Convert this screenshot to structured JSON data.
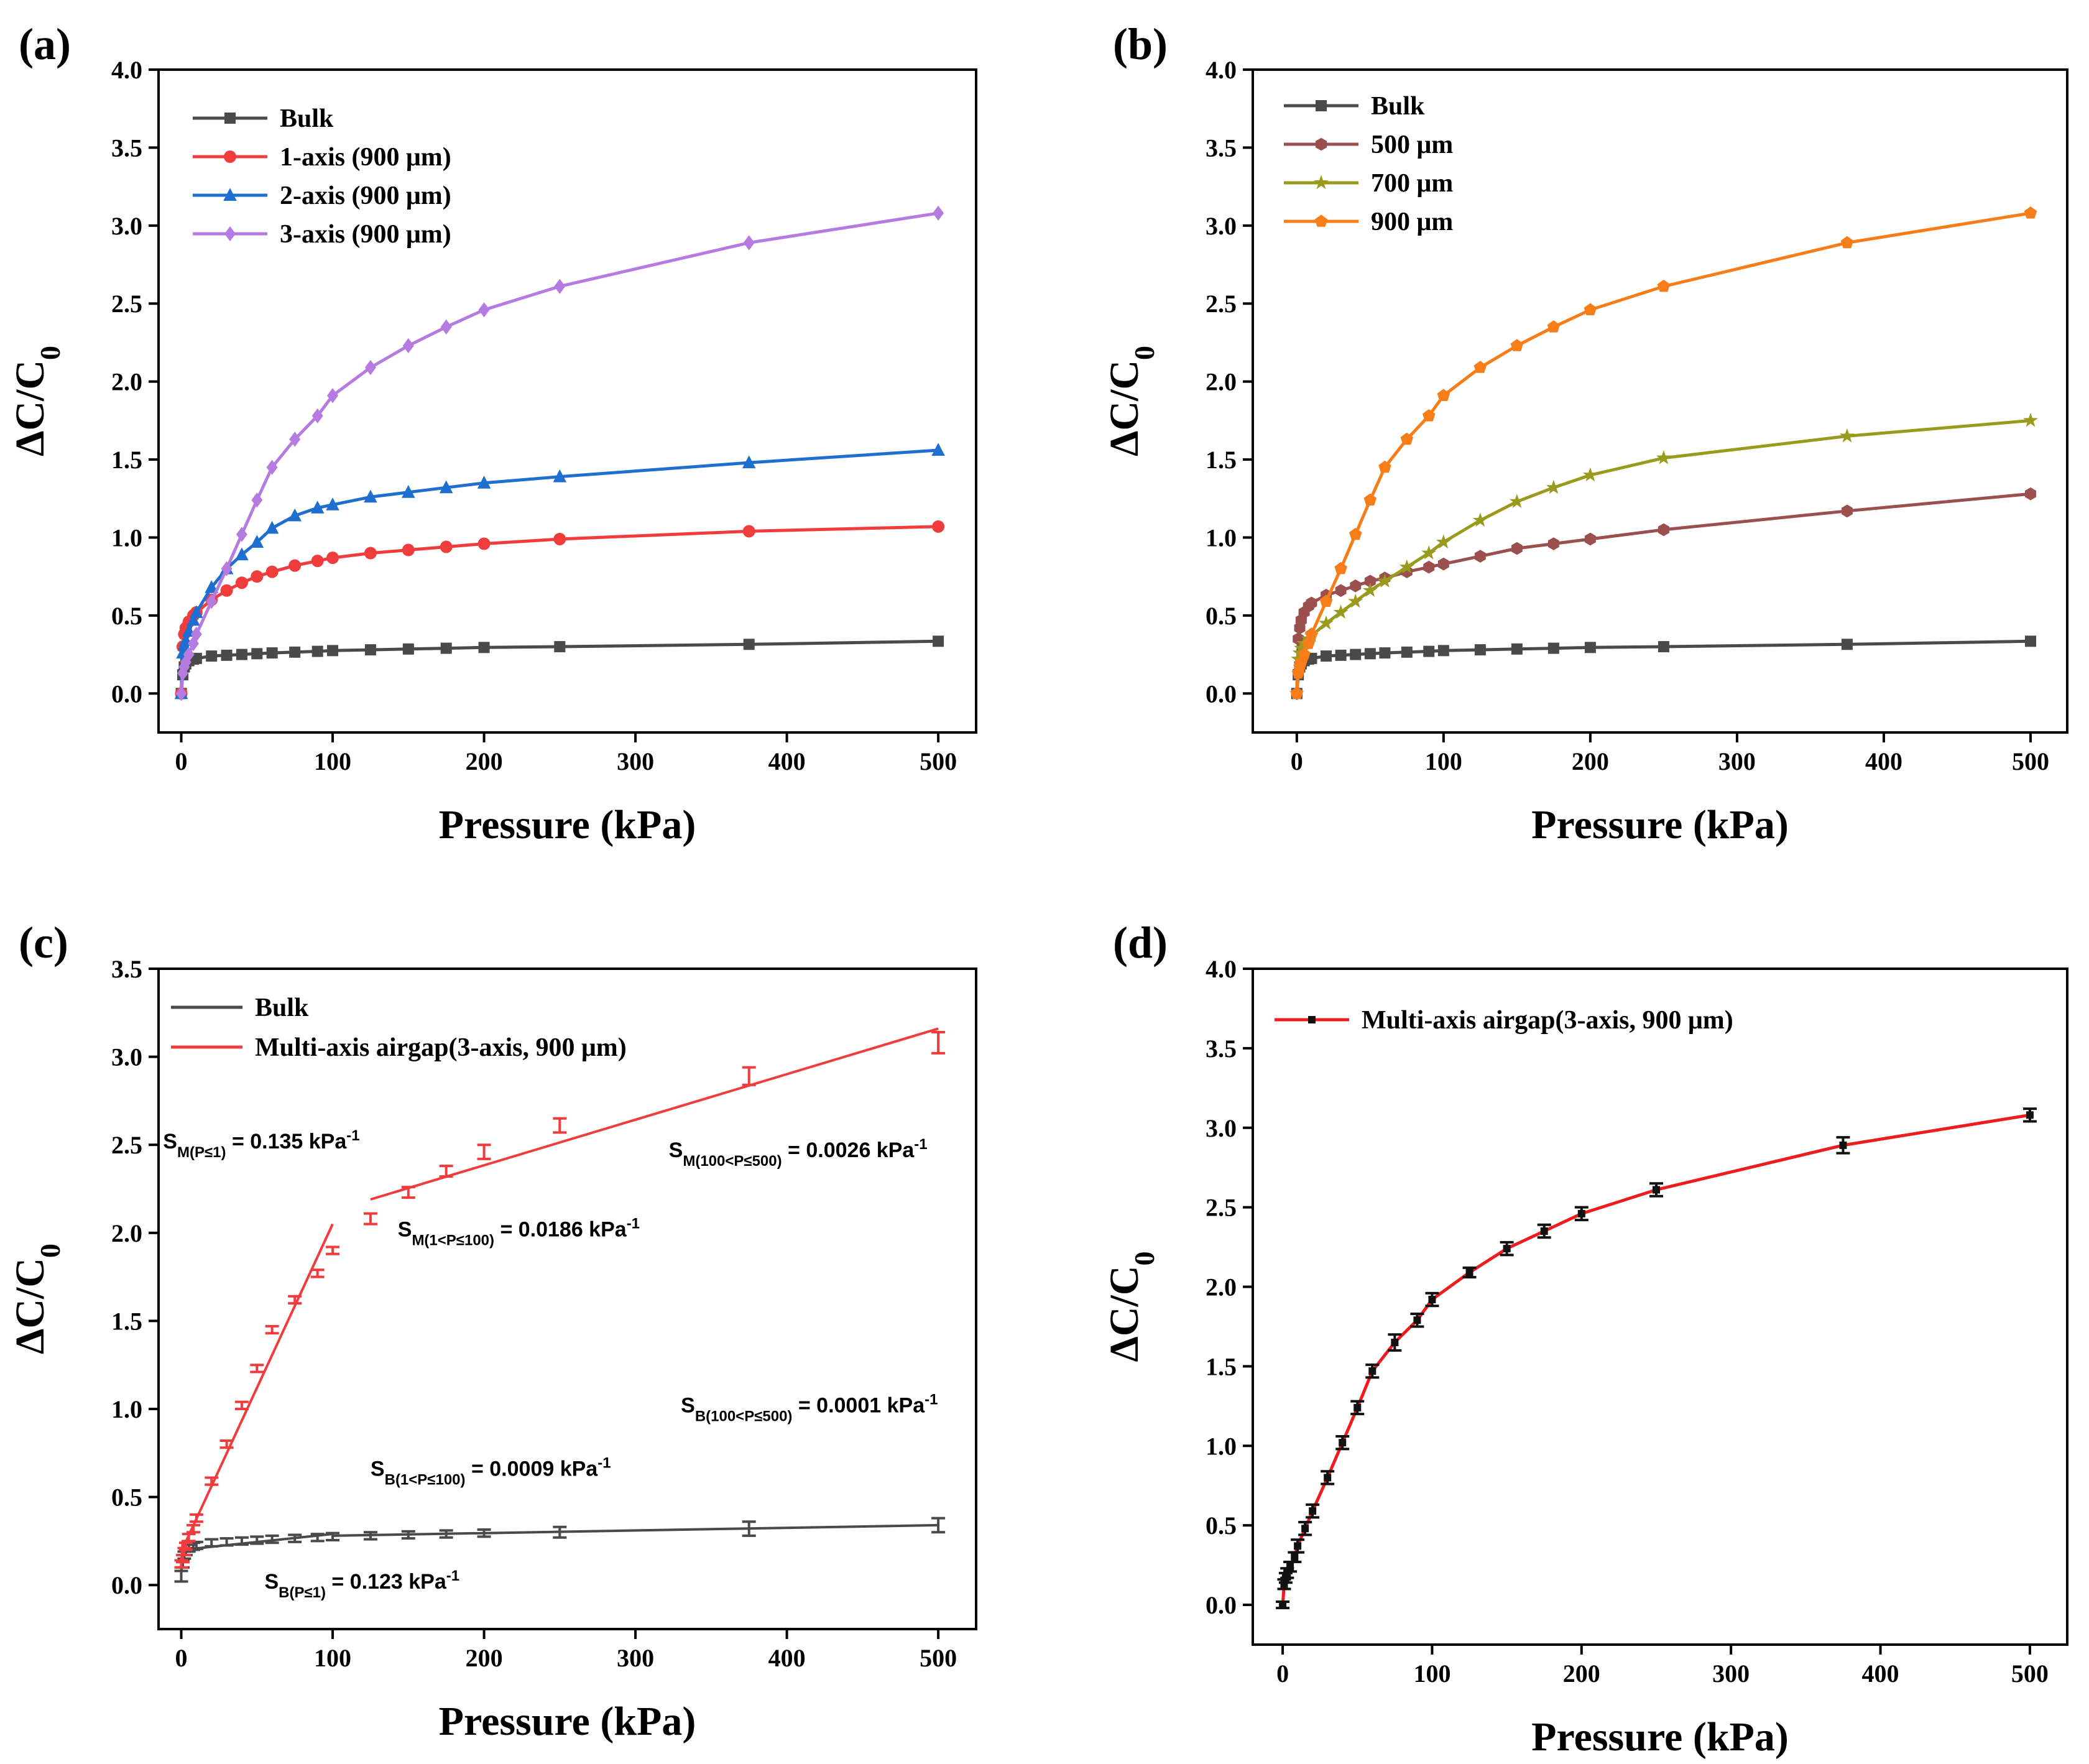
{
  "chart_data": [
    {
      "type": "line",
      "panel_label": "(a)",
      "xlabel": "Pressure (kPa)",
      "ylabel": "ΔC/C",
      "ylabel_sub": "0",
      "xlim": [
        -15,
        525
      ],
      "ylim": [
        -0.25,
        4.0
      ],
      "xticks": [
        0,
        100,
        200,
        300,
        400,
        500
      ],
      "yticks": [
        0.0,
        0.5,
        1.0,
        1.5,
        2.0,
        2.5,
        3.0,
        3.5,
        4.0
      ],
      "legend": "top-left",
      "series": [
        {
          "name": "Bulk",
          "color": "#4a4a4a",
          "marker": "square",
          "x": [
            0,
            1,
            2,
            3,
            5,
            8,
            10,
            20,
            30,
            40,
            50,
            60,
            75,
            90,
            100,
            125,
            150,
            175,
            200,
            250,
            375,
            500
          ],
          "y": [
            0,
            0.12,
            0.17,
            0.19,
            0.21,
            0.22,
            0.225,
            0.24,
            0.245,
            0.25,
            0.255,
            0.26,
            0.265,
            0.27,
            0.275,
            0.28,
            0.285,
            0.29,
            0.295,
            0.3,
            0.315,
            0.335
          ]
        },
        {
          "name": "1-axis (900 μm)",
          "color": "#f03c3c",
          "marker": "circle",
          "x": [
            0,
            1,
            2,
            3,
            5,
            8,
            10,
            20,
            30,
            40,
            50,
            60,
            75,
            90,
            100,
            125,
            150,
            175,
            200,
            250,
            375,
            500
          ],
          "y": [
            0,
            0.3,
            0.38,
            0.42,
            0.46,
            0.5,
            0.52,
            0.6,
            0.66,
            0.71,
            0.75,
            0.78,
            0.82,
            0.85,
            0.87,
            0.9,
            0.92,
            0.94,
            0.96,
            0.99,
            1.04,
            1.07
          ]
        },
        {
          "name": "2-axis (900 μm)",
          "color": "#1f6fd1",
          "marker": "triangle",
          "x": [
            0,
            1,
            2,
            3,
            5,
            8,
            10,
            20,
            30,
            40,
            50,
            60,
            75,
            90,
            100,
            125,
            150,
            175,
            200,
            250,
            375,
            500
          ],
          "y": [
            0,
            0.26,
            0.31,
            0.34,
            0.4,
            0.47,
            0.52,
            0.68,
            0.8,
            0.89,
            0.97,
            1.06,
            1.14,
            1.19,
            1.21,
            1.26,
            1.29,
            1.32,
            1.35,
            1.39,
            1.48,
            1.56
          ]
        },
        {
          "name": "3-axis (900 μm)",
          "color": "#b57be0",
          "marker": "diamond",
          "x": [
            0,
            1,
            2,
            3,
            5,
            8,
            10,
            20,
            30,
            40,
            50,
            60,
            75,
            90,
            100,
            125,
            150,
            175,
            200,
            250,
            375,
            500
          ],
          "y": [
            0,
            0.13,
            0.17,
            0.2,
            0.25,
            0.32,
            0.38,
            0.59,
            0.8,
            1.02,
            1.24,
            1.45,
            1.63,
            1.78,
            1.91,
            2.09,
            2.23,
            2.35,
            2.46,
            2.61,
            2.89,
            3.08
          ]
        }
      ]
    },
    {
      "type": "line",
      "panel_label": "(b)",
      "xlabel": "Pressure (kPa)",
      "ylabel": "ΔC/C",
      "ylabel_sub": "0",
      "xlim": [
        -30,
        525
      ],
      "ylim": [
        -0.25,
        4.0
      ],
      "xticks": [
        0,
        100,
        200,
        300,
        400,
        500
      ],
      "yticks": [
        0.0,
        0.5,
        1.0,
        1.5,
        2.0,
        2.5,
        3.0,
        3.5,
        4.0
      ],
      "legend": "top-left",
      "series": [
        {
          "name": "Bulk",
          "color": "#4a4a4a",
          "marker": "square",
          "x": [
            0,
            1,
            2,
            3,
            5,
            8,
            10,
            20,
            30,
            40,
            50,
            60,
            75,
            90,
            100,
            125,
            150,
            175,
            200,
            250,
            375,
            500
          ],
          "y": [
            0,
            0.12,
            0.17,
            0.19,
            0.21,
            0.22,
            0.225,
            0.24,
            0.245,
            0.25,
            0.255,
            0.26,
            0.265,
            0.27,
            0.275,
            0.28,
            0.285,
            0.29,
            0.295,
            0.3,
            0.315,
            0.335
          ]
        },
        {
          "name": "500 μm",
          "color": "#9b4f4f",
          "marker": "hexagon",
          "x": [
            0,
            1,
            2,
            3,
            5,
            8,
            10,
            20,
            30,
            40,
            50,
            60,
            75,
            90,
            100,
            125,
            150,
            175,
            200,
            250,
            375,
            500
          ],
          "y": [
            0,
            0.35,
            0.42,
            0.47,
            0.52,
            0.56,
            0.58,
            0.63,
            0.66,
            0.69,
            0.72,
            0.74,
            0.78,
            0.81,
            0.83,
            0.88,
            0.93,
            0.96,
            0.99,
            1.05,
            1.17,
            1.28
          ]
        },
        {
          "name": "700 μm",
          "color": "#9a9a1c",
          "marker": "star",
          "x": [
            0,
            1,
            2,
            3,
            5,
            8,
            10,
            20,
            30,
            40,
            50,
            60,
            75,
            90,
            100,
            125,
            150,
            175,
            200,
            250,
            375,
            500
          ],
          "y": [
            0,
            0.22,
            0.26,
            0.29,
            0.32,
            0.35,
            0.37,
            0.45,
            0.52,
            0.59,
            0.66,
            0.72,
            0.81,
            0.9,
            0.97,
            1.11,
            1.23,
            1.32,
            1.4,
            1.51,
            1.65,
            1.75
          ]
        },
        {
          "name": "900 μm",
          "color": "#f77d19",
          "marker": "pentagon",
          "x": [
            0,
            1,
            2,
            3,
            5,
            8,
            10,
            20,
            30,
            40,
            50,
            60,
            75,
            90,
            100,
            125,
            150,
            175,
            200,
            250,
            375,
            500
          ],
          "y": [
            0,
            0.13,
            0.17,
            0.2,
            0.25,
            0.32,
            0.38,
            0.59,
            0.8,
            1.02,
            1.24,
            1.45,
            1.63,
            1.78,
            1.91,
            2.09,
            2.23,
            2.35,
            2.46,
            2.61,
            2.89,
            3.08
          ]
        }
      ]
    },
    {
      "type": "scatter",
      "panel_label": "(c)",
      "xlabel": "Pressure (kPa)",
      "ylabel": "ΔC/C",
      "ylabel_sub": "0",
      "xlim": [
        -15,
        525
      ],
      "ylim": [
        -0.25,
        3.5
      ],
      "xticks": [
        0,
        100,
        200,
        300,
        400,
        500
      ],
      "yticks": [
        0.0,
        0.5,
        1.0,
        1.5,
        2.0,
        2.5,
        3.0,
        3.5
      ],
      "legend": "top-left",
      "series": [
        {
          "name": "Bulk",
          "color": "#4a4a4a",
          "x": [
            0,
            1,
            2,
            3,
            5,
            8,
            10,
            20,
            30,
            40,
            50,
            60,
            75,
            90,
            100,
            125,
            150,
            175,
            200,
            250,
            375,
            500
          ],
          "y": [
            0.05,
            0.12,
            0.17,
            0.19,
            0.21,
            0.22,
            0.225,
            0.24,
            0.245,
            0.25,
            0.255,
            0.26,
            0.265,
            0.27,
            0.275,
            0.28,
            0.285,
            0.29,
            0.295,
            0.3,
            0.32,
            0.34
          ],
          "err": [
            0.03,
            0.02,
            0.02,
            0.02,
            0.02,
            0.02,
            0.02,
            0.02,
            0.02,
            0.02,
            0.02,
            0.02,
            0.02,
            0.02,
            0.02,
            0.02,
            0.02,
            0.02,
            0.02,
            0.03,
            0.04,
            0.04
          ],
          "fits": [
            {
              "x": [
                0,
                1
              ],
              "y": [
                0.07,
                0.19
              ]
            },
            {
              "x": [
                1,
                100
              ],
              "y": [
                0.2,
                0.29
              ]
            },
            {
              "x": [
                100,
                500
              ],
              "y": [
                0.28,
                0.34
              ]
            }
          ]
        },
        {
          "name": "Multi-axis airgap(3-axis, 900 μm)",
          "color": "#f03c3c",
          "x": [
            0,
            1,
            2,
            3,
            5,
            8,
            10,
            20,
            30,
            40,
            50,
            60,
            75,
            90,
            100,
            125,
            150,
            175,
            200,
            250,
            375,
            500
          ],
          "y": [
            0.12,
            0.15,
            0.19,
            0.22,
            0.27,
            0.32,
            0.38,
            0.59,
            0.8,
            1.02,
            1.23,
            1.45,
            1.62,
            1.77,
            1.9,
            2.08,
            2.23,
            2.35,
            2.46,
            2.61,
            2.89,
            3.08
          ],
          "err": [
            0.02,
            0.02,
            0.02,
            0.02,
            0.02,
            0.02,
            0.02,
            0.02,
            0.02,
            0.02,
            0.02,
            0.02,
            0.02,
            0.02,
            0.02,
            0.03,
            0.03,
            0.03,
            0.04,
            0.04,
            0.05,
            0.06
          ],
          "fits": [
            {
              "x": [
                0,
                1
              ],
              "y": [
                0.12,
                0.255
              ]
            },
            {
              "x": [
                0,
                100
              ],
              "y": [
                0.19,
                2.05
              ]
            },
            {
              "x": [
                125,
                500
              ],
              "y": [
                2.19,
                3.16
              ]
            }
          ]
        }
      ],
      "annotations": [
        {
          "main": "S",
          "sub": "M(P≤1)",
          "value": " = 0.135 kPa",
          "sup": "-1",
          "at": [
            -12,
            2.48
          ]
        },
        {
          "main": "S",
          "sub": "M(1<P≤100)",
          "value": " = 0.0186 kPa",
          "sup": "-1",
          "at": [
            143,
            1.98
          ]
        },
        {
          "main": "S",
          "sub": "M(100<P≤500)",
          "value": " = 0.0026 kPa",
          "sup": "-1",
          "at": [
            322,
            2.43
          ]
        },
        {
          "main": "S",
          "sub": "B(100<P≤500)",
          "value": " = 0.0001 kPa",
          "sup": "-1",
          "at": [
            330,
            0.98
          ]
        },
        {
          "main": "S",
          "sub": "B(1<P≤100)",
          "value": " = 0.0009 kPa",
          "sup": "-1",
          "at": [
            125,
            0.62
          ]
        },
        {
          "main": "S",
          "sub": "B(P≤1)",
          "value": " = 0.123 kPa",
          "sup": "-1",
          "at": [
            55,
            -0.02
          ]
        }
      ]
    },
    {
      "type": "line",
      "panel_label": "(d)",
      "xlabel": "Pressure (kPa)",
      "ylabel": "ΔC/C",
      "ylabel_sub": "0",
      "xlim": [
        -20,
        525
      ],
      "ylim": [
        -0.25,
        4.0
      ],
      "xticks": [
        0,
        100,
        200,
        300,
        400,
        500
      ],
      "yticks": [
        0.0,
        0.5,
        1.0,
        1.5,
        2.0,
        2.5,
        3.0,
        3.5,
        4.0
      ],
      "legend": "top-left",
      "series": [
        {
          "name": "Multi-axis airgap(3-axis, 900 μm)",
          "color": "#ee1c1c",
          "marker_color": "#111111",
          "x": [
            0,
            1,
            2,
            3,
            5,
            8,
            10,
            15,
            20,
            30,
            40,
            50,
            60,
            75,
            90,
            100,
            125,
            150,
            175,
            200,
            250,
            375,
            500
          ],
          "y": [
            0,
            0.13,
            0.17,
            0.2,
            0.24,
            0.3,
            0.37,
            0.48,
            0.59,
            0.8,
            1.02,
            1.24,
            1.47,
            1.65,
            1.79,
            1.92,
            2.09,
            2.24,
            2.35,
            2.46,
            2.61,
            2.89,
            3.08
          ],
          "err": [
            0.02,
            0.03,
            0.03,
            0.03,
            0.03,
            0.03,
            0.04,
            0.04,
            0.04,
            0.04,
            0.04,
            0.04,
            0.04,
            0.05,
            0.04,
            0.04,
            0.03,
            0.04,
            0.04,
            0.04,
            0.04,
            0.05,
            0.04
          ]
        }
      ]
    }
  ]
}
